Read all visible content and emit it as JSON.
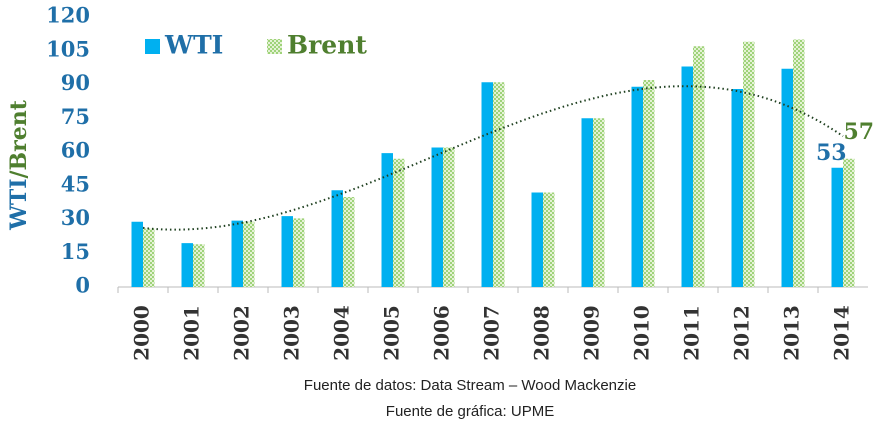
{
  "chart_data": {
    "type": "bar",
    "categories": [
      "2000",
      "2001",
      "2002",
      "2003",
      "2004",
      "2005",
      "2006",
      "2007",
      "2008",
      "2009",
      "2010",
      "2011",
      "2012",
      "2013",
      "2014"
    ],
    "series": [
      {
        "name": "WTI",
        "color": "#00b0f0",
        "values": [
          29,
          19.5,
          29.5,
          31.5,
          43,
          59.5,
          62,
          91,
          42,
          75,
          89,
          98,
          88,
          97,
          53
        ]
      },
      {
        "name": "Brent",
        "color": "#9fd37a",
        "values": [
          26,
          19,
          29,
          30.5,
          40,
          57,
          62,
          91,
          42,
          75,
          92,
          107,
          109,
          110,
          57
        ]
      }
    ],
    "ylabel": [
      {
        "text": "WTI",
        "color": "#1f6fa8"
      },
      {
        "text": "/Brent",
        "color": "#4f7f2f"
      }
    ],
    "label_last": true,
    "trendline": "polynomial",
    "ylim": [
      0,
      120
    ],
    "yticks": [
      0,
      15,
      30,
      45,
      60,
      75,
      90,
      105,
      120
    ],
    "sources": [
      "Fuente de datos: Data Stream – Wood Mackenzie",
      "Fuente de gráfica: UPME"
    ]
  }
}
